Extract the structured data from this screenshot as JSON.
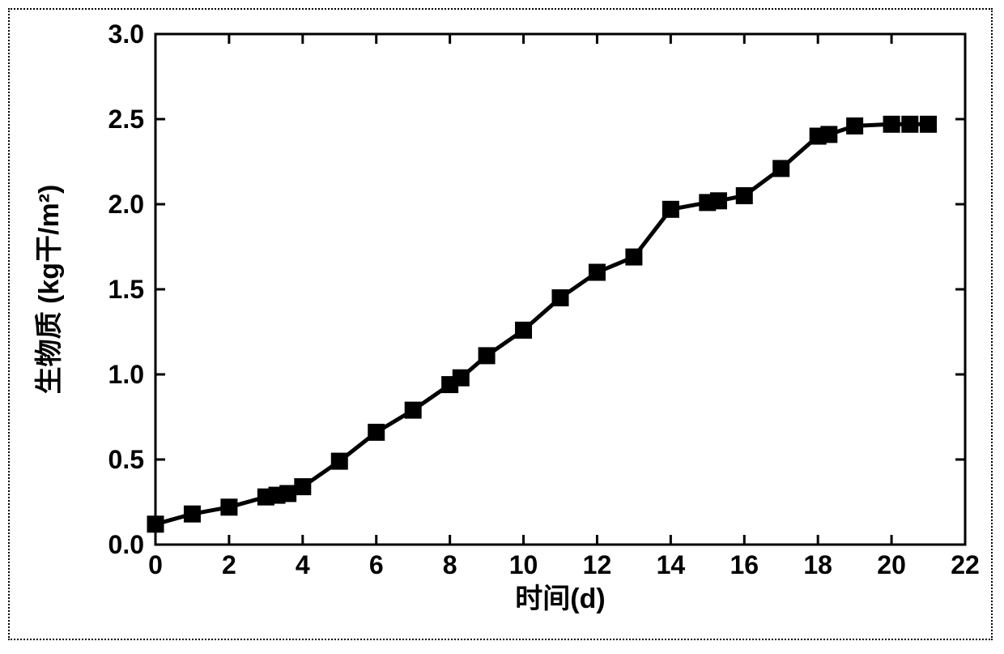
{
  "chart": {
    "type": "line",
    "background_color": "#ffffff",
    "frame_border_style": "dotted",
    "frame_border_color": "#000000",
    "plot_border_color": "#000000",
    "plot_border_width": 3,
    "xlabel": "时间(d)",
    "ylabel": "生物质 (kg干/m²)",
    "label_fontsize": 34,
    "tick_fontsize": 32,
    "font_weight": "bold",
    "xlim": [
      0,
      22
    ],
    "ylim": [
      0.0,
      3.0
    ],
    "xticks": [
      0,
      2,
      4,
      6,
      8,
      10,
      12,
      14,
      16,
      18,
      20,
      22
    ],
    "yticks": [
      0.0,
      0.5,
      1.0,
      1.5,
      2.0,
      2.5,
      3.0
    ],
    "ytick_labels": [
      "0.0",
      "0.5",
      "1.0",
      "1.5",
      "2.0",
      "2.5",
      "3.0"
    ],
    "major_tick_length": 12,
    "line_color": "#000000",
    "line_width": 5,
    "marker_style": "square",
    "marker_size": 20,
    "marker_color": "#000000",
    "series": {
      "x": [
        0,
        1,
        2,
        3,
        3.3,
        3.6,
        4,
        5,
        6,
        7,
        8,
        8.3,
        9,
        10,
        11,
        12,
        13,
        14,
        15,
        15.3,
        16,
        17,
        18,
        18.3,
        19,
        20,
        20.5,
        21
      ],
      "y": [
        0.12,
        0.18,
        0.22,
        0.28,
        0.29,
        0.3,
        0.34,
        0.49,
        0.66,
        0.79,
        0.94,
        0.98,
        1.11,
        1.26,
        1.45,
        1.6,
        1.69,
        1.97,
        2.01,
        2.02,
        2.05,
        2.21,
        2.4,
        2.41,
        2.46,
        2.47,
        2.47,
        2.47
      ]
    }
  }
}
